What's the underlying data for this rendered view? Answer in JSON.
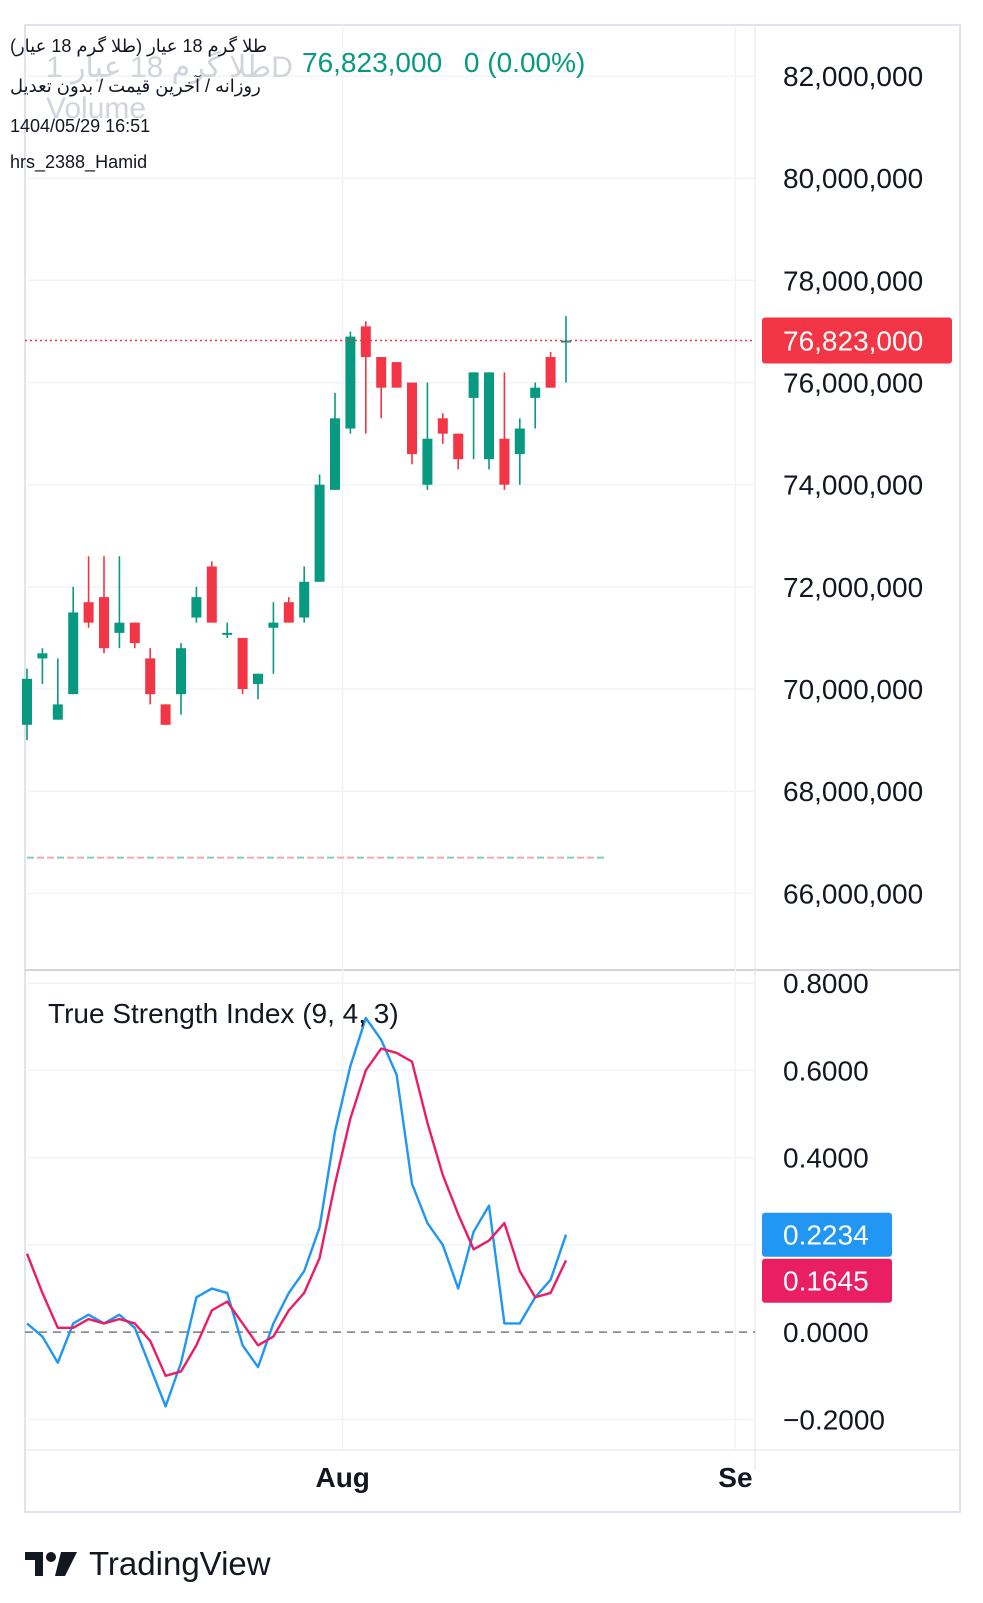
{
  "legend": {
    "title": "طلا گرم 18 عیار (طلا گرم 18 عیار)",
    "subtitle": "روزانه / آخرین قیمت / بدون تعدیل",
    "datetime": "1404/05/29 16:51",
    "author": "hrs_2388_Hamid",
    "ghost_name": "طلا گرم 18 عیار 1D",
    "ghost_volume": "Volume"
  },
  "ticker": {
    "last": "76,823,000",
    "change": "0 (0.00%)"
  },
  "colors": {
    "up": "#089981",
    "down": "#f23645",
    "tsi": "#2196f3",
    "signal": "#e91e63",
    "grid": "#f0f3fa",
    "axis_text": "#131722"
  },
  "chart_data": [
    {
      "type": "candlestick",
      "title": "طلا گرم 18 عیار (طلا گرم 18 عیار)",
      "ylim": [
        64500000,
        83000000
      ],
      "y_ticks": [
        "82,000,000",
        "80,000,000",
        "78,000,000",
        "76,000,000",
        "74,000,000",
        "72,000,000",
        "70,000,000",
        "68,000,000",
        "66,000,000"
      ],
      "y_tick_values": [
        82000000,
        80000000,
        78000000,
        76000000,
        74000000,
        72000000,
        70000000,
        68000000,
        66000000
      ],
      "last_price": 76823000,
      "last_price_label": "76,823,000",
      "baseline_value": 66700000,
      "candles": [
        {
          "o": 69300000,
          "h": 70400000,
          "l": 69000000,
          "c": 70200000
        },
        {
          "o": 70600000,
          "h": 70800000,
          "l": 70100000,
          "c": 70700000
        },
        {
          "o": 69400000,
          "h": 70600000,
          "l": 69400000,
          "c": 69700000
        },
        {
          "o": 69900000,
          "h": 72000000,
          "l": 69900000,
          "c": 71500000
        },
        {
          "o": 71700000,
          "h": 72600000,
          "l": 71200000,
          "c": 71300000
        },
        {
          "o": 71800000,
          "h": 72600000,
          "l": 70700000,
          "c": 70800000
        },
        {
          "o": 71100000,
          "h": 72600000,
          "l": 70800000,
          "c": 71300000
        },
        {
          "o": 71300000,
          "h": 71300000,
          "l": 70800000,
          "c": 70900000
        },
        {
          "o": 70600000,
          "h": 70800000,
          "l": 69700000,
          "c": 69900000
        },
        {
          "o": 69700000,
          "h": 69700000,
          "l": 69300000,
          "c": 69300000
        },
        {
          "o": 69900000,
          "h": 70900000,
          "l": 69500000,
          "c": 70800000
        },
        {
          "o": 71400000,
          "h": 72000000,
          "l": 71300000,
          "c": 71800000
        },
        {
          "o": 72400000,
          "h": 72500000,
          "l": 71300000,
          "c": 71300000
        },
        {
          "o": 71100000,
          "h": 71300000,
          "l": 71000000,
          "c": 71100000
        },
        {
          "o": 71000000,
          "h": 71000000,
          "l": 69900000,
          "c": 70000000
        },
        {
          "o": 70100000,
          "h": 70300000,
          "l": 69800000,
          "c": 70300000
        },
        {
          "o": 71200000,
          "h": 71700000,
          "l": 70300000,
          "c": 71300000
        },
        {
          "o": 71700000,
          "h": 71800000,
          "l": 71300000,
          "c": 71300000
        },
        {
          "o": 71400000,
          "h": 72400000,
          "l": 71300000,
          "c": 72100000
        },
        {
          "o": 72100000,
          "h": 74200000,
          "l": 72100000,
          "c": 74000000
        },
        {
          "o": 73900000,
          "h": 75800000,
          "l": 73900000,
          "c": 75300000
        },
        {
          "o": 75100000,
          "h": 77000000,
          "l": 75000000,
          "c": 76900000
        },
        {
          "o": 77100000,
          "h": 77200000,
          "l": 75000000,
          "c": 76500000
        },
        {
          "o": 76500000,
          "h": 76500000,
          "l": 75300000,
          "c": 75900000
        },
        {
          "o": 76400000,
          "h": 76400000,
          "l": 75900000,
          "c": 75900000
        },
        {
          "o": 76000000,
          "h": 76000000,
          "l": 74400000,
          "c": 74600000
        },
        {
          "o": 74000000,
          "h": 76000000,
          "l": 73900000,
          "c": 74900000
        },
        {
          "o": 75300000,
          "h": 75400000,
          "l": 74800000,
          "c": 75000000
        },
        {
          "o": 75000000,
          "h": 75000000,
          "l": 74300000,
          "c": 74500000
        },
        {
          "o": 75700000,
          "h": 76200000,
          "l": 74500000,
          "c": 76200000
        },
        {
          "o": 74500000,
          "h": 76200000,
          "l": 74300000,
          "c": 76200000
        },
        {
          "o": 74900000,
          "h": 76200000,
          "l": 73900000,
          "c": 74000000
        },
        {
          "o": 74600000,
          "h": 75300000,
          "l": 74000000,
          "c": 75100000
        },
        {
          "o": 75700000,
          "h": 76000000,
          "l": 75100000,
          "c": 75900000
        },
        {
          "o": 76500000,
          "h": 76600000,
          "l": 75900000,
          "c": 75900000
        },
        {
          "o": 76823000,
          "h": 77300000,
          "l": 76000000,
          "c": 76823000
        }
      ]
    },
    {
      "type": "line",
      "title": "True Strength Index (9, 4, 3)",
      "ylim": [
        -0.27,
        0.83
      ],
      "y_ticks": [
        "0.8000",
        "0.6000",
        "0.4000",
        "0.2000",
        "0.0000",
        "−0.2000"
      ],
      "y_tick_values": [
        0.8,
        0.6,
        0.4,
        0.2,
        0.0,
        -0.2
      ],
      "zero_line": 0.0,
      "series": [
        {
          "name": "TSI",
          "last_label": "0.2234",
          "values": [
            0.02,
            -0.01,
            -0.07,
            0.02,
            0.04,
            0.02,
            0.04,
            0.01,
            -0.08,
            -0.17,
            -0.07,
            0.08,
            0.1,
            0.09,
            -0.03,
            -0.08,
            0.02,
            0.09,
            0.14,
            0.24,
            0.46,
            0.61,
            0.72,
            0.67,
            0.59,
            0.34,
            0.25,
            0.2,
            0.1,
            0.23,
            0.29,
            0.02,
            0.02,
            0.08,
            0.12,
            0.2234
          ]
        },
        {
          "name": "Signal",
          "last_label": "0.1645",
          "values": [
            0.18,
            0.09,
            0.01,
            0.01,
            0.03,
            0.02,
            0.03,
            0.02,
            -0.02,
            -0.1,
            -0.09,
            -0.03,
            0.05,
            0.07,
            0.02,
            -0.03,
            -0.01,
            0.05,
            0.09,
            0.17,
            0.34,
            0.49,
            0.6,
            0.65,
            0.64,
            0.62,
            0.48,
            0.36,
            0.27,
            0.19,
            0.21,
            0.25,
            0.14,
            0.08,
            0.09,
            0.1645
          ]
        }
      ]
    }
  ],
  "time_axis": {
    "labels": [
      "Aug",
      "Se"
    ],
    "label_bars": [
      20.5,
      46
    ]
  },
  "footer": {
    "brand": "TradingView"
  }
}
